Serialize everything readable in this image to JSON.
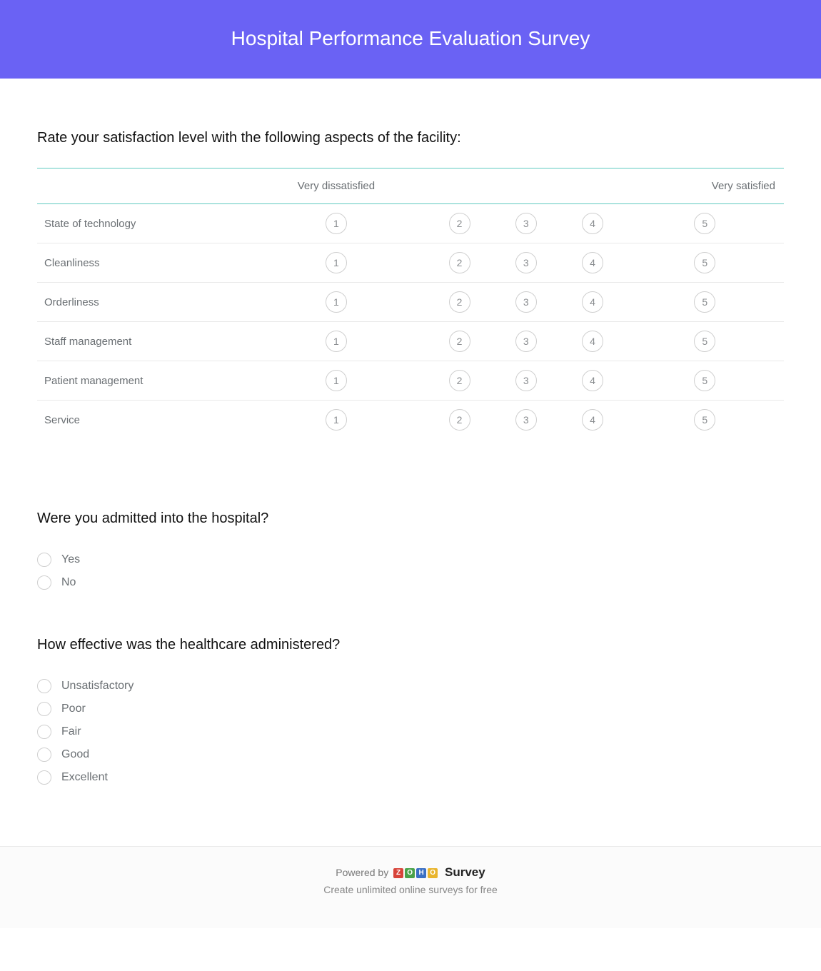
{
  "header": {
    "title": "Hospital Performance Evaluation Survey"
  },
  "colors": {
    "header_bg": "#6a62f4",
    "header_text": "#ffffff",
    "accent_border": "#5fcac1",
    "muted_text": "#6a6f73",
    "divider": "#e9e9e9"
  },
  "question1": {
    "title": "Rate your satisfaction level with the following aspects of the facility:",
    "scale_left_label": "Very dissatisfied",
    "scale_right_label": "Very satisfied",
    "scale_values": [
      "1",
      "2",
      "3",
      "4",
      "5"
    ],
    "rows": [
      "State of technology",
      "Cleanliness",
      "Orderliness",
      "Staff management",
      "Patient management",
      "Service"
    ]
  },
  "question2": {
    "title": "Were you admitted into the hospital?",
    "options": [
      "Yes",
      "No"
    ]
  },
  "question3": {
    "title": "How effective was the healthcare administered?",
    "options": [
      "Unsatisfactory",
      "Poor",
      "Fair",
      "Good",
      "Excellent"
    ]
  },
  "footer": {
    "powered_prefix": "Powered by ",
    "brand_letters": [
      "Z",
      "O",
      "H",
      "O"
    ],
    "brand_colors": [
      "#d8443a",
      "#4aa24a",
      "#3a6fc4",
      "#e9b52d"
    ],
    "brand_word": "Survey",
    "tagline": "Create unlimited online surveys for free"
  }
}
